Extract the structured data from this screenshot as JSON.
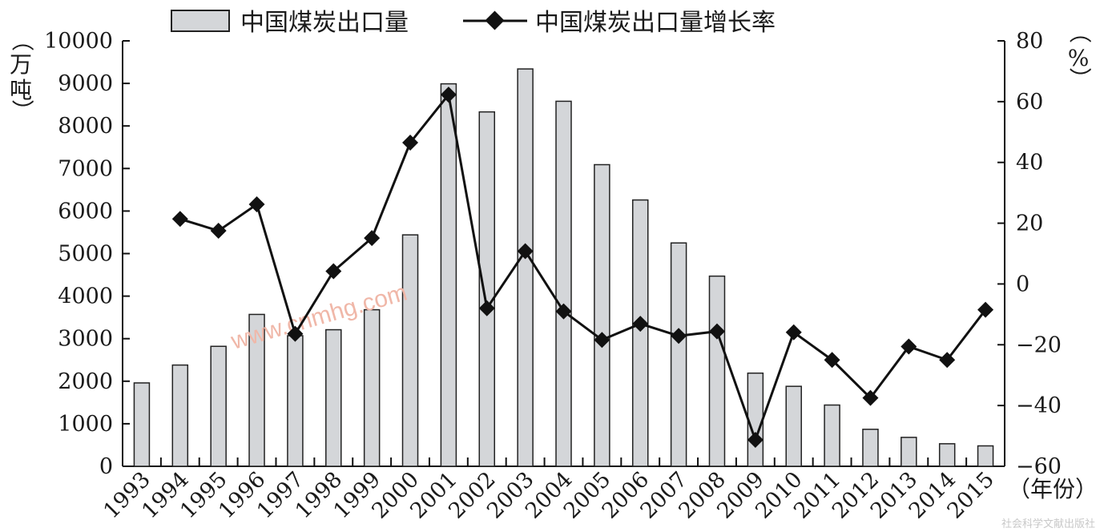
{
  "chart_data": {
    "type": "bar",
    "categories": [
      "1993",
      "1994",
      "1995",
      "1996",
      "1997",
      "1998",
      "1999",
      "2000",
      "2001",
      "2002",
      "2003",
      "2004",
      "2005",
      "2006",
      "2007",
      "2008",
      "2009",
      "2010",
      "2011",
      "2012",
      "2013",
      "2014",
      "2015"
    ],
    "series": [
      {
        "name": "中国煤炭出口量",
        "type": "bar",
        "axis": "left",
        "values": [
          1960,
          2380,
          2820,
          3570,
          3070,
          3210,
          3680,
          5440,
          8990,
          8330,
          9340,
          8580,
          7090,
          6260,
          5250,
          4470,
          2190,
          1880,
          1440,
          870,
          680,
          530,
          480
        ]
      },
      {
        "name": "中国煤炭出口量增长率",
        "type": "line",
        "axis": "right",
        "values": [
          null,
          21.4,
          17.5,
          26.2,
          -16.4,
          4.2,
          15.1,
          46.5,
          62.3,
          -8.0,
          10.8,
          -9.0,
          -18.4,
          -13.1,
          -17.1,
          -15.6,
          -51.3,
          -15.9,
          -25.0,
          -37.5,
          -20.6,
          -25.0,
          -8.5
        ]
      }
    ],
    "y_left": {
      "unit_label": [
        "（",
        "万",
        "吨",
        "）"
      ],
      "range": [
        0,
        10000
      ],
      "ticks": [
        "0",
        "1000",
        "2000",
        "3000",
        "4000",
        "5000",
        "6000",
        "7000",
        "8000",
        "9000",
        "10000"
      ]
    },
    "y_right": {
      "unit_label": [
        "（",
        "%",
        "）"
      ],
      "range": [
        -60,
        80
      ],
      "ticks": [
        "80",
        "60",
        "40",
        "20",
        "0",
        "−20",
        "−40",
        "−60"
      ]
    },
    "x_unit_label": "（年份）",
    "legend": {
      "position": "top",
      "bar_label": "中国煤炭出口量",
      "line_label": "中国煤炭出口量增长率"
    },
    "grid": false,
    "colors": {
      "bar_fill": "#d4d6d9",
      "bar_stroke": "#222222",
      "line": "#111111",
      "marker": "#111111"
    }
  },
  "watermark": "www.cnmhg.com",
  "credit": "社会科学文献出版社"
}
